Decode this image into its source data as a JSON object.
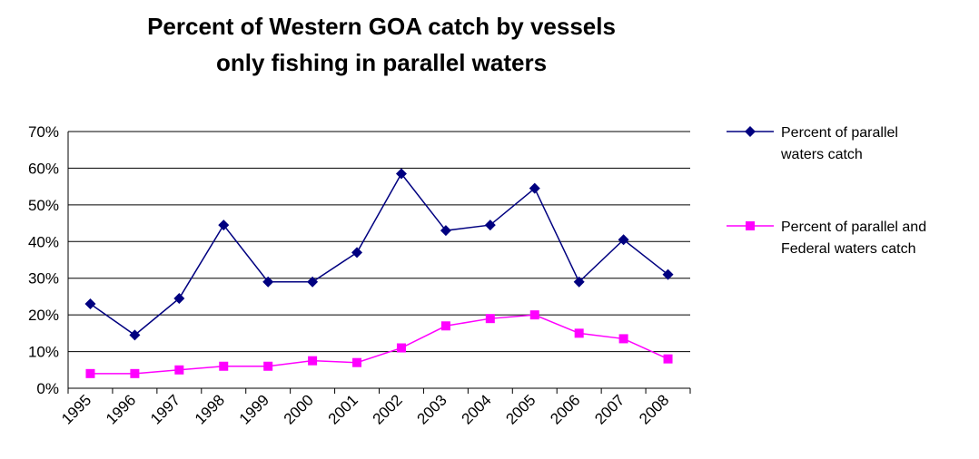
{
  "chart_data": {
    "type": "line",
    "title": [
      "Percent of Western GOA catch by vessels",
      "only fishing in parallel waters"
    ],
    "categories": [
      "1995",
      "1996",
      "1997",
      "1998",
      "1999",
      "2000",
      "2001",
      "2002",
      "2003",
      "2004",
      "2005",
      "2006",
      "2007",
      "2008"
    ],
    "series": [
      {
        "name": [
          "Percent of parallel",
          "waters catch"
        ],
        "color": "#000080",
        "marker": "diamond",
        "values": [
          23,
          14.5,
          24.5,
          44.5,
          29,
          29,
          37,
          58.5,
          43,
          44.5,
          54.5,
          29,
          40.5,
          31
        ]
      },
      {
        "name": [
          "Percent of parallel and",
          "Federal waters catch"
        ],
        "color": "#ff00ff",
        "marker": "square",
        "values": [
          4,
          4,
          5,
          6,
          6,
          7.5,
          7,
          11,
          17,
          19,
          20,
          15,
          13.5,
          8
        ]
      }
    ],
    "ylim": [
      0,
      70
    ],
    "yticks": [
      {
        "value": 0,
        "label": "0%"
      },
      {
        "value": 10,
        "label": "10%"
      },
      {
        "value": 20,
        "label": "20%"
      },
      {
        "value": 30,
        "label": "30%"
      },
      {
        "value": 40,
        "label": "40%"
      },
      {
        "value": 50,
        "label": "50%"
      },
      {
        "value": 60,
        "label": "60%"
      },
      {
        "value": 70,
        "label": "70%"
      }
    ],
    "grid": true
  }
}
